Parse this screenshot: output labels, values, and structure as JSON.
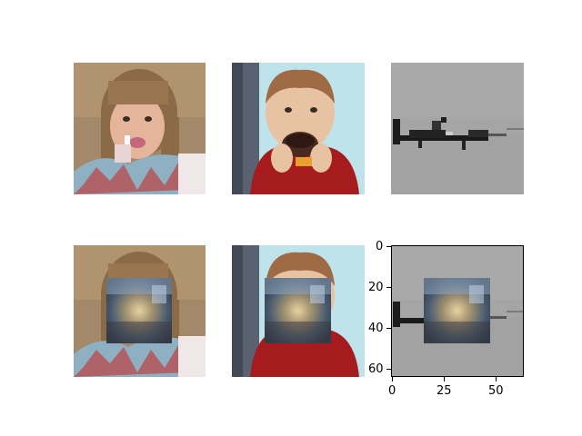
{
  "figure": {
    "panels": [
      {
        "name": "girl-original",
        "depicts": "girl with lollipop"
      },
      {
        "name": "boy-original",
        "depicts": "boy eating a donut"
      },
      {
        "name": "airplane-original",
        "depicts": "airplane on grey sky"
      },
      {
        "name": "girl-masked",
        "depicts": "girl with blurred patch"
      },
      {
        "name": "boy-masked",
        "depicts": "boy with blurred patch"
      },
      {
        "name": "airplane-masked",
        "depicts": "airplane with blurred patch"
      }
    ],
    "axes": {
      "x_ticks": [
        "0",
        "25",
        "50"
      ],
      "y_ticks": [
        "0",
        "20",
        "40",
        "60"
      ],
      "xlim": [
        0,
        64
      ],
      "ylim": [
        64,
        0
      ]
    },
    "patch_region": {
      "x": [
        16,
        48
      ],
      "y": [
        16,
        48
      ]
    },
    "colors": {
      "skin_bg": "#a3896a",
      "hair": "#8a6a4a",
      "shirt_red": "#a61b1e",
      "sky_grey": "#a5a5a5",
      "patch_blue": "#5c6f88"
    }
  }
}
